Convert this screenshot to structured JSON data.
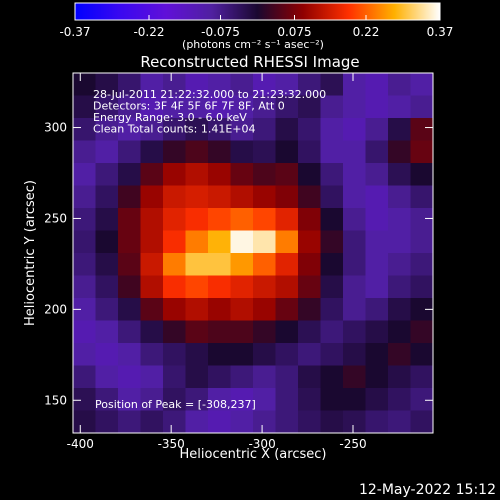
{
  "chart_data": {
    "type": "heatmap",
    "title": "Reconstructed RHESSI Image",
    "xlabel": "Heliocentric X (arcsec)",
    "ylabel": "Heliocentric Y (arcsec)",
    "xlim": [
      -404,
      -206
    ],
    "ylim": [
      132,
      330
    ],
    "xticks": [
      -400,
      -350,
      -300,
      -250
    ],
    "yticks": [
      150,
      200,
      250,
      300
    ],
    "colorbar_label": "(photons cm⁻² s⁻¹ asec⁻²)",
    "zlim": [
      -0.37,
      0.37
    ],
    "zticks": [
      -0.37,
      -0.22,
      -0.075,
      0.075,
      0.22,
      0.37
    ],
    "colorscale": [
      "#0000ff",
      "#3a08f0",
      "#6010d8",
      "#5020a0",
      "#1a0830",
      "#900000",
      "#ff3000",
      "#ffb000",
      "#ffffff"
    ],
    "annotations": [
      "28-Jul-2011 21:22:32.000 to 21:23:32.000",
      "Detectors: 3F 4F 5F 6F 7F 8F, Att 0",
      "Energy Range: 3.0 - 6.0 keV",
      "Clean     Total counts: 1.41E+04"
    ],
    "peak_label": "Position of Peak = [-308,237]",
    "timestamp": "12-May-2022 15:12",
    "z": [
      [
        0,
        -0.02,
        -0.05,
        -0.1,
        -0.08,
        -0.12,
        -0.1,
        -0.08,
        -0.12,
        -0.1,
        -0.06,
        -0.03,
        -0.1,
        -0.12,
        -0.08,
        -0.1
      ],
      [
        -0.02,
        -0.05,
        -0.08,
        -0.12,
        -0.1,
        -0.1,
        -0.12,
        -0.1,
        -0.08,
        -0.05,
        -0.03,
        -0.08,
        -0.1,
        -0.12,
        -0.1,
        -0.08
      ],
      [
        -0.05,
        -0.08,
        -0.1,
        -0.08,
        -0.05,
        -0.03,
        -0.05,
        -0.08,
        -0.06,
        -0.02,
        -0.05,
        -0.1,
        -0.12,
        -0.08,
        -0.02,
        0.05
      ],
      [
        -0.08,
        -0.1,
        -0.06,
        -0.02,
        0.02,
        0.04,
        0.02,
        -0.02,
        -0.03,
        0,
        -0.04,
        -0.1,
        -0.1,
        -0.05,
        0.02,
        0.06
      ],
      [
        -0.1,
        -0.06,
        -0.02,
        0.05,
        0.1,
        0.12,
        0.1,
        0.06,
        0.04,
        0.05,
        0,
        -0.06,
        -0.1,
        -0.08,
        -0.03,
        0
      ],
      [
        -0.08,
        -0.04,
        0.03,
        0.1,
        0.14,
        0.15,
        0.14,
        0.12,
        0.1,
        0.08,
        0.03,
        -0.04,
        -0.1,
        -0.12,
        -0.08,
        -0.05
      ],
      [
        -0.06,
        -0.02,
        0.06,
        0.12,
        0.16,
        0.18,
        0.2,
        0.22,
        0.2,
        0.16,
        0.08,
        0,
        -0.08,
        -0.12,
        -0.1,
        -0.08
      ],
      [
        -0.05,
        0,
        0.06,
        0.12,
        0.18,
        0.24,
        0.28,
        0.36,
        0.34,
        0.24,
        0.1,
        0.02,
        -0.06,
        -0.1,
        -0.1,
        -0.08
      ],
      [
        -0.06,
        -0.02,
        0.05,
        0.14,
        0.24,
        0.3,
        0.3,
        0.26,
        0.22,
        0.16,
        0.08,
        0,
        -0.06,
        -0.1,
        -0.08,
        -0.06
      ],
      [
        -0.08,
        -0.04,
        0.03,
        0.12,
        0.18,
        0.2,
        0.18,
        0.16,
        0.14,
        0.12,
        0.06,
        -0.02,
        -0.08,
        -0.1,
        -0.06,
        -0.04
      ],
      [
        -0.1,
        -0.06,
        -0.02,
        0.05,
        0.1,
        0.12,
        0.1,
        0.12,
        0.1,
        0.06,
        0.02,
        -0.04,
        -0.08,
        -0.06,
        -0.02,
        0
      ],
      [
        -0.12,
        -0.1,
        -0.06,
        -0.02,
        0.02,
        0.05,
        0.04,
        0.04,
        0.02,
        0,
        -0.03,
        -0.06,
        -0.04,
        -0.02,
        0,
        0.02
      ],
      [
        -0.1,
        -0.12,
        -0.1,
        -0.06,
        -0.04,
        -0.02,
        0,
        0,
        -0.02,
        -0.04,
        -0.06,
        -0.04,
        -0.02,
        0,
        0.02,
        0
      ],
      [
        -0.06,
        -0.1,
        -0.12,
        -0.1,
        -0.05,
        -0.02,
        -0.04,
        -0.06,
        -0.08,
        -0.06,
        -0.02,
        0,
        0.02,
        0,
        -0.02,
        -0.04
      ],
      [
        -0.03,
        -0.06,
        -0.1,
        -0.08,
        -0.04,
        -0.06,
        -0.1,
        -0.12,
        -0.1,
        -0.06,
        -0.03,
        0,
        0,
        -0.02,
        -0.04,
        -0.06
      ],
      [
        -0.02,
        -0.04,
        -0.06,
        -0.04,
        -0.06,
        -0.1,
        -0.12,
        -0.1,
        -0.08,
        -0.06,
        -0.04,
        -0.02,
        -0.03,
        -0.05,
        -0.06,
        -0.04
      ]
    ]
  }
}
